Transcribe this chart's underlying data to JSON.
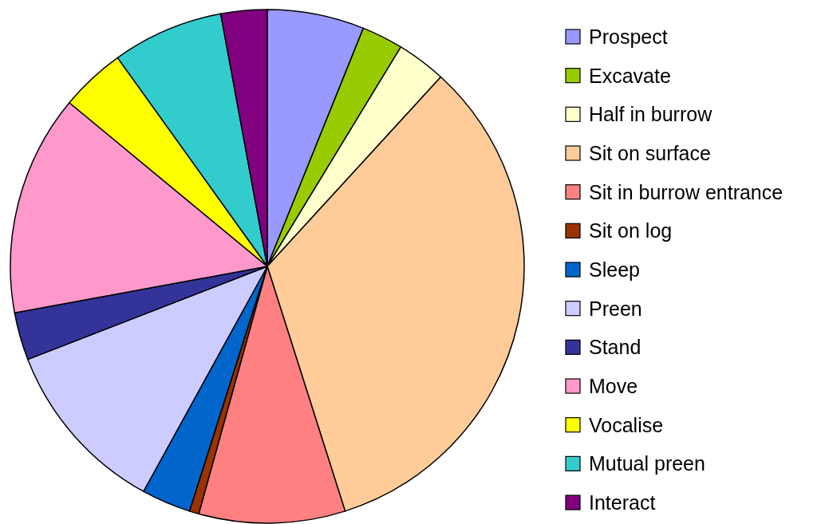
{
  "chart_data": {
    "type": "pie",
    "categories": [
      "Prospect",
      "Excavate",
      "Half in burrow",
      "Sit on surface",
      "Sit in burrow entrance",
      "Sit on log",
      "Sleep",
      "Preen",
      "Stand",
      "Move",
      "Vocalise",
      "Mutual preen",
      "Interact"
    ],
    "values": [
      6.1,
      2.6,
      3.1,
      33.3,
      9.2,
      0.6,
      3.1,
      11.1,
      3.0,
      13.9,
      4.1,
      7.0,
      2.9
    ],
    "colors": [
      "#9999ff",
      "#99cc00",
      "#ffffcc",
      "#ffcc99",
      "#ff8080",
      "#993300",
      "#0066cc",
      "#ccccff",
      "#333399",
      "#ff99cc",
      "#ffff00",
      "#33cccc",
      "#800080"
    ],
    "legend": "right"
  }
}
